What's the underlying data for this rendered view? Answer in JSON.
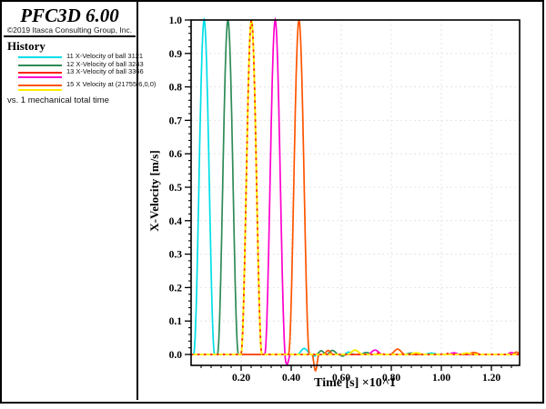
{
  "app": {
    "title": "PFC3D 6.00",
    "copyright": "©2019 Itasca Consulting Group, Inc."
  },
  "legend": {
    "heading": "History",
    "footer": "vs. 1 mechanical total time",
    "items": [
      {
        "label": "11 X-Velocity of ball 3121",
        "color": "#00dfe8"
      },
      {
        "label": "12 X-Velocity of ball 3243",
        "color": "#2e8b57"
      },
      {
        "label": "13 X-Velocity of ball 3366",
        "color": "#ff2414"
      },
      {
        "label": "",
        "color": "#ff00cd"
      },
      {
        "label": "15 X Velocity at (21755.6,0,0)",
        "color": "#ff5500"
      },
      {
        "label": "",
        "color": "#ffeb00"
      }
    ]
  },
  "chart_data": {
    "type": "line",
    "xlabel": "Time [s] ×10^1",
    "ylabel": "X-Velocity [m/s]",
    "xlim": [
      0,
      1.312
    ],
    "ylim": [
      -0.033,
      1.0
    ],
    "grid": {
      "style": "dashed",
      "color": "#e4e4e4"
    },
    "x_ticks": {
      "major": [
        0.2,
        0.4,
        0.6,
        0.8,
        1.0,
        1.2
      ],
      "labels": [
        "0.20",
        "0.40",
        "0.60",
        "0.80",
        "1.00",
        "1.20"
      ],
      "minor_step": 0.04
    },
    "y_ticks": {
      "major": [
        0,
        0.1,
        0.2,
        0.3,
        0.4,
        0.5,
        0.6,
        0.7,
        0.8,
        0.9,
        1.0
      ],
      "labels": [
        "0.0",
        "0.1",
        "0.2",
        "0.3",
        "0.4",
        "0.5",
        "0.6",
        "0.7",
        "0.8",
        "0.9",
        "1.0"
      ],
      "minor_step": 0.02
    },
    "series": [
      {
        "name": "11 X-Velocity of ball 3121",
        "color": "#00dfe8",
        "style": "solid",
        "peak_value": 1.0,
        "pulse_center": 0.052,
        "pulse_half_width": 0.042,
        "tail_bumps": [
          [
            0.452,
            0.018,
            0.028
          ],
          [
            0.492,
            -0.005,
            0.012
          ],
          [
            0.63,
            0.007,
            0.022
          ],
          [
            0.96,
            0.004,
            0.03
          ]
        ]
      },
      {
        "name": "12 X-Velocity of ball 3243",
        "color": "#2e8b57",
        "style": "solid",
        "peak_value": 1.0,
        "pulse_center": 0.147,
        "pulse_half_width": 0.042,
        "tail_bumps": [
          [
            0.52,
            0.011,
            0.02
          ],
          [
            0.565,
            0.012,
            0.025
          ],
          [
            0.605,
            -0.005,
            0.015
          ],
          [
            0.7,
            0.006,
            0.025
          ],
          [
            0.88,
            0.004,
            0.03
          ]
        ]
      },
      {
        "name": "13 X-Velocity of ball 3366",
        "color": "#ff2414",
        "style": "dashed",
        "peak_value": 1.0,
        "pulse_center": 0.241,
        "pulse_half_width": 0.042,
        "tail_bumps": [
          [
            0.75,
            0.004,
            0.03
          ],
          [
            1.02,
            0.003,
            0.03
          ]
        ]
      },
      {
        "name": "",
        "color": "#ff00cd",
        "style": "solid",
        "peak_value": 1.0,
        "pulse_center": 0.336,
        "pulse_half_width": 0.042,
        "tail_bumps": [
          [
            0.383,
            -0.03,
            0.014
          ],
          [
            0.735,
            0.013,
            0.03
          ],
          [
            1.05,
            0.005,
            0.025
          ],
          [
            1.28,
            0.006,
            0.02
          ]
        ]
      },
      {
        "name": "15 X Velocity at (21755.6,0,0)",
        "color": "#ff5500",
        "style": "solid",
        "peak_value": 1.0,
        "pulse_center": 0.431,
        "pulse_half_width": 0.042,
        "tail_bumps": [
          [
            0.497,
            -0.049,
            0.014
          ],
          [
            0.548,
            0.012,
            0.02
          ],
          [
            0.825,
            0.016,
            0.03
          ],
          [
            1.13,
            0.006,
            0.03
          ],
          [
            1.3,
            0.007,
            0.018
          ]
        ]
      },
      {
        "name": "",
        "color": "#ffeb00",
        "style": "solid",
        "peak_value": 1.0,
        "pulse_center": 0.241,
        "pulse_half_width": 0.042,
        "tail_bumps": [
          [
            0.655,
            0.013,
            0.03
          ],
          [
            0.9,
            0.005,
            0.03
          ],
          [
            1.1,
            0.004,
            0.03
          ]
        ]
      }
    ]
  }
}
